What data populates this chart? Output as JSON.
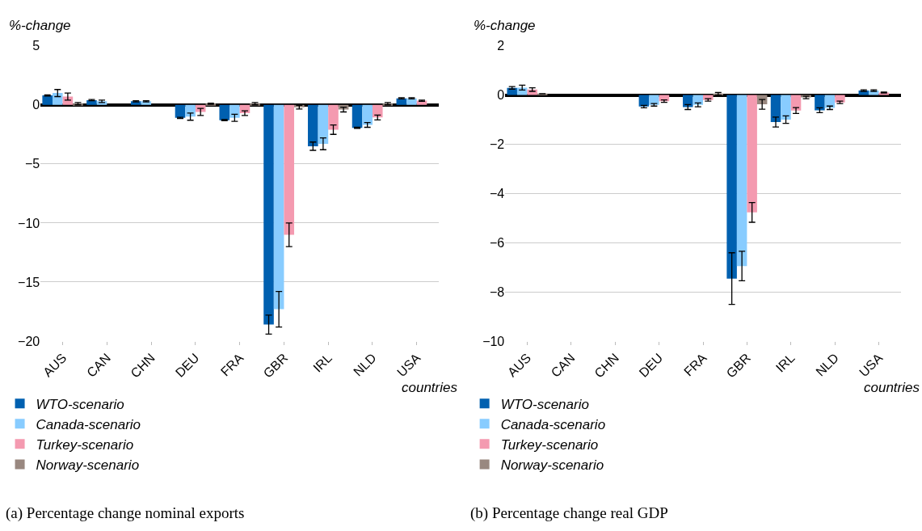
{
  "chart_data": [
    {
      "type": "bar",
      "ylabel": "%-change",
      "xlabel": "countries",
      "categories": [
        "AUS",
        "CAN",
        "CHN",
        "DEU",
        "FRA",
        "GBR",
        "IRL",
        "NLD",
        "USA"
      ],
      "series": [
        {
          "name": "WTO-scenario",
          "color": "#0060b0",
          "values": [
            0.8,
            0.4,
            0.3,
            -1.1,
            -1.3,
            -18.6,
            -3.5,
            -1.95,
            0.55
          ],
          "errors": [
            0.05,
            0.05,
            0.05,
            0.05,
            0.05,
            0.8,
            0.35,
            0.05,
            0.05
          ]
        },
        {
          "name": "Canada-scenario",
          "color": "#88ccff",
          "values": [
            1.0,
            0.3,
            0.3,
            -1.0,
            -1.1,
            -17.3,
            -3.3,
            -1.7,
            0.55
          ],
          "errors": [
            0.3,
            0.1,
            0.05,
            0.3,
            0.3,
            1.5,
            0.5,
            0.2,
            0.05
          ]
        },
        {
          "name": "Turkey-scenario",
          "color": "#f49ab0",
          "values": [
            0.7,
            null,
            null,
            -0.6,
            -0.7,
            -11.0,
            -2.1,
            -1.07,
            0.35
          ],
          "errors": [
            0.3,
            null,
            null,
            0.3,
            0.2,
            1.0,
            0.4,
            0.2,
            0.05
          ]
        },
        {
          "name": "Norway-scenario",
          "color": "#998880",
          "values": [
            0.1,
            null,
            null,
            0.1,
            0.1,
            -0.2,
            -0.4,
            0.1,
            0.0
          ],
          "errors": [
            0.1,
            null,
            null,
            0.05,
            0.1,
            0.15,
            0.2,
            0.1,
            null
          ]
        }
      ],
      "ylim": [
        -20,
        5
      ],
      "yticks": [
        {
          "value": -20,
          "label": "−20"
        },
        {
          "value": -15,
          "label": "−15"
        },
        {
          "value": -10,
          "label": "−10"
        },
        {
          "value": -5,
          "label": "−5"
        },
        0,
        5
      ],
      "grid": "y",
      "legend": "bottom",
      "annotations": [
        "(a) Percentage change nominal exports"
      ]
    },
    {
      "type": "bar",
      "ylabel": "%-change",
      "xlabel": "countries",
      "categories": [
        "AUS",
        "CAN",
        "CHN",
        "DEU",
        "FRA",
        "GBR",
        "IRL",
        "NLD",
        "USA"
      ],
      "series": [
        {
          "name": "WTO-scenario",
          "color": "#0060b0",
          "values": [
            0.29,
            0,
            0,
            -0.47,
            -0.49,
            -7.46,
            -1.1,
            -0.62,
            0.18
          ],
          "errors": [
            0.05,
            null,
            null,
            0.05,
            0.1,
            1.05,
            0.2,
            0.1,
            0.03
          ]
        },
        {
          "name": "Canada-scenario",
          "color": "#88ccff",
          "values": [
            0.3,
            0,
            0,
            -0.4,
            -0.4,
            -6.95,
            -1.0,
            -0.52,
            0.18
          ],
          "errors": [
            0.1,
            null,
            null,
            0.05,
            0.08,
            0.6,
            0.15,
            0.07,
            0.03
          ]
        },
        {
          "name": "Turkey-scenario",
          "color": "#f49ab0",
          "values": [
            0.22,
            0,
            0,
            -0.25,
            -0.2,
            -4.77,
            -0.63,
            -0.3,
            0.1
          ],
          "errors": [
            0.07,
            null,
            null,
            0.05,
            0.05,
            0.4,
            0.12,
            0.05,
            0.02
          ]
        },
        {
          "name": "Norway-scenario",
          "color": "#998880",
          "values": [
            0.05,
            0,
            0,
            null,
            0.05,
            -0.38,
            -0.1,
            null,
            0.0
          ],
          "errors": [
            null,
            null,
            null,
            null,
            0.05,
            0.2,
            0.05,
            null,
            null
          ]
        }
      ],
      "ylim": [
        -10,
        2
      ],
      "yticks": [
        {
          "value": -10,
          "label": "−10"
        },
        {
          "value": -8,
          "label": "−8"
        },
        {
          "value": -6,
          "label": "−6"
        },
        {
          "value": -4,
          "label": "−4"
        },
        {
          "value": -2,
          "label": "−2"
        },
        0,
        2
      ],
      "grid": "y",
      "legend": "bottom",
      "annotations": [
        "(b) Percentage change real GDP"
      ]
    }
  ]
}
